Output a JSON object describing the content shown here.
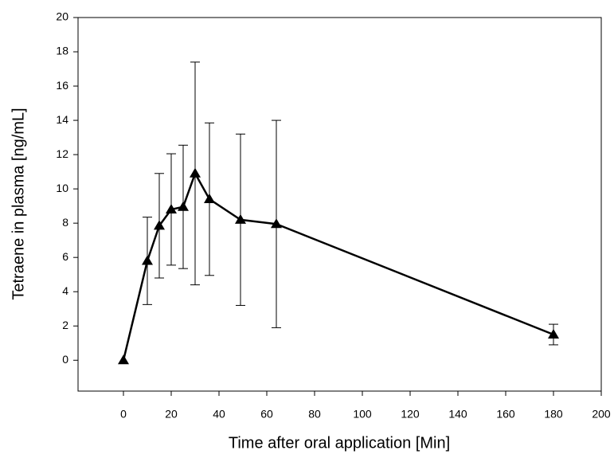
{
  "chart_data": {
    "type": "line",
    "x_label": "Time after oral application [Min]",
    "y_label": "Tetraene in plasma [ng/mL]",
    "x": [
      0,
      10,
      15,
      20,
      25,
      30,
      36,
      49,
      64,
      180
    ],
    "series": [
      {
        "color": "#000000",
        "values": [
          0,
          5.8,
          7.85,
          8.8,
          8.95,
          10.9,
          9.4,
          8.2,
          7.95,
          1.5
        ],
        "errors": [
          null,
          2.55,
          3.05,
          3.25,
          3.6,
          6.5,
          4.45,
          5.0,
          6.05,
          0.6
        ]
      }
    ],
    "xlim": [
      -19,
      200
    ],
    "xticks": [
      0,
      20,
      40,
      60,
      80,
      100,
      120,
      140,
      160,
      180,
      200
    ],
    "ylim": [
      -1.8,
      20
    ],
    "yticks": [
      0,
      2,
      4,
      6,
      8,
      10,
      12,
      14,
      16,
      18,
      20
    ],
    "grid": false
  }
}
